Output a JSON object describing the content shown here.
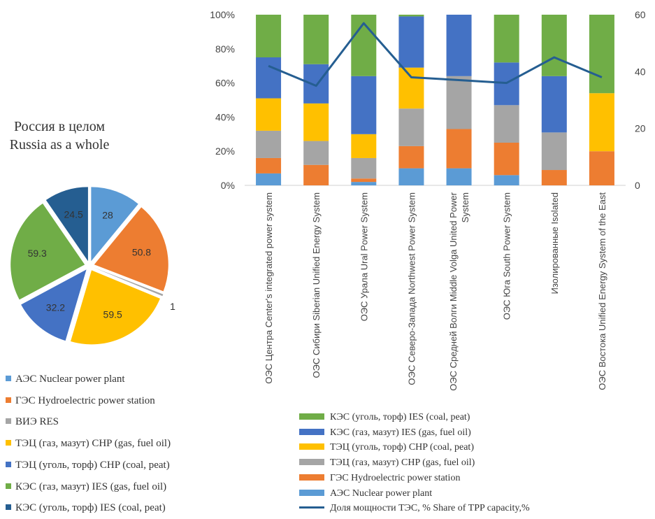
{
  "chart_data": [
    {
      "type": "pie",
      "title": "Россия в целом",
      "subtitle": "Russia as a whole",
      "stray_label": "1",
      "slices": [
        {
          "name": "АЭС Nuclear power plant",
          "value": 28,
          "label": "28",
          "color": "#5b9bd5"
        },
        {
          "name": "ГЭС Hydroelectric power station",
          "value": 50.8,
          "label": "50.8",
          "color": "#ed7d31"
        },
        {
          "name": "ВИЭ RES",
          "value": 1,
          "label": "",
          "color": "#a5a5a5"
        },
        {
          "name": "ТЭЦ (газ, мазут) CHP (gas, fuel oil)",
          "value": 59.5,
          "label": "59.5",
          "color": "#ffc000"
        },
        {
          "name": "ТЭЦ (уголь, торф) CHP (coal, peat)",
          "value": 32.2,
          "label": "32.2",
          "color": "#4472c4"
        },
        {
          "name": "КЭС (газ, мазут) IES (gas, fuel oil)",
          "value": 59.3,
          "label": "59.3",
          "color": "#70ad47"
        },
        {
          "name": "КЭС (уголь, торф) IES (coal, peat)",
          "value": 24.5,
          "label": "24.5",
          "color": "#255e91"
        }
      ]
    },
    {
      "type": "bar",
      "stacked": true,
      "ylim": [
        0,
        100
      ],
      "y2lim": [
        0,
        60
      ],
      "yticks": [
        "0%",
        "20%",
        "40%",
        "60%",
        "80%",
        "100%"
      ],
      "y2ticks": [
        "0",
        "20",
        "40",
        "60"
      ],
      "categories": [
        [
          "ОЭС Центра Center's integrated power system"
        ],
        [
          "ОЭС Сибири Siberian Unified Energy System"
        ],
        [
          "ОЭС Урала Ural Power System"
        ],
        [
          "ОЭС Северо-Запада Northwest Power System"
        ],
        [
          "ОЭС Средней Волги Middle Volga United Power",
          "System"
        ],
        [
          "ОЭС Юга South Power System"
        ],
        [
          "Изолированные Isolated"
        ],
        [
          "ОЭС Востока Unified Energy System of the East"
        ]
      ],
      "series": [
        {
          "name": "АЭС Nuclear power plant",
          "color": "#5b9bd5",
          "values": [
            7,
            0,
            2,
            10,
            10,
            6,
            0,
            0
          ]
        },
        {
          "name": "ГЭС Hydroelectric power station",
          "color": "#ed7d31",
          "values": [
            9,
            12,
            2,
            13,
            23,
            19,
            9,
            20
          ]
        },
        {
          "name": "ТЭЦ (газ, мазут) CHP (gas, fuel oil)",
          "color": "#a5a5a5",
          "values": [
            16,
            14,
            12,
            22,
            31,
            22,
            22,
            0
          ]
        },
        {
          "name": "ТЭЦ (уголь, торф) CHP (coal, peat)",
          "color": "#ffc000",
          "values": [
            19,
            22,
            14,
            24,
            0,
            0,
            0,
            34
          ]
        },
        {
          "name": "КЭС (газ, мазут) IES (gas, fuel oil)",
          "color": "#4472c4",
          "values": [
            24,
            23,
            34,
            30,
            36,
            25,
            33,
            0
          ]
        },
        {
          "name": "КЭС (уголь, торф) IES (coal, peat)",
          "color": "#70ad47",
          "values": [
            25,
            29,
            36,
            1,
            0,
            28,
            36,
            46
          ]
        }
      ],
      "line": {
        "name": "Доля мощности ТЭС, %  Share of TPP capacity,%",
        "color": "#255e91",
        "axis": "right",
        "values": [
          42,
          35,
          57,
          38,
          37,
          36,
          45,
          38
        ]
      },
      "legend": [
        {
          "label": "КЭС (уголь, торф) IES (coal, peat)",
          "color": "#70ad47"
        },
        {
          "label": "КЭС (газ, мазут) IES (gas, fuel oil)",
          "color": "#4472c4"
        },
        {
          "label": "ТЭЦ (уголь, торф) CHP (coal, peat)",
          "color": "#ffc000"
        },
        {
          "label": "ТЭЦ (газ, мазут) CHP (gas, fuel oil)",
          "color": "#a5a5a5"
        },
        {
          "label": "ГЭС Hydroelectric power station",
          "color": "#ed7d31"
        },
        {
          "label": "АЭС Nuclear power plant",
          "color": "#5b9bd5"
        },
        {
          "label": "Доля мощности ТЭС, %  Share of TPP capacity,%",
          "color": "#255e91",
          "kind": "line"
        }
      ]
    }
  ],
  "pie_legend": [
    {
      "label": "АЭС Nuclear power plant",
      "color": "#5b9bd5"
    },
    {
      "label": "ГЭС Hydroelectric power station",
      "color": "#ed7d31"
    },
    {
      "label": "ВИЭ RES",
      "color": "#a5a5a5"
    },
    {
      "label": "ТЭЦ (газ, мазут) CHP (gas, fuel oil)",
      "color": "#ffc000"
    },
    {
      "label": "ТЭЦ (уголь, торф) CHP (coal, peat)",
      "color": "#4472c4"
    },
    {
      "label": "КЭС (газ, мазут) IES (gas, fuel oil)",
      "color": "#70ad47"
    },
    {
      "label": "КЭС (уголь, торф) IES (coal, peat)",
      "color": "#255e91"
    }
  ]
}
